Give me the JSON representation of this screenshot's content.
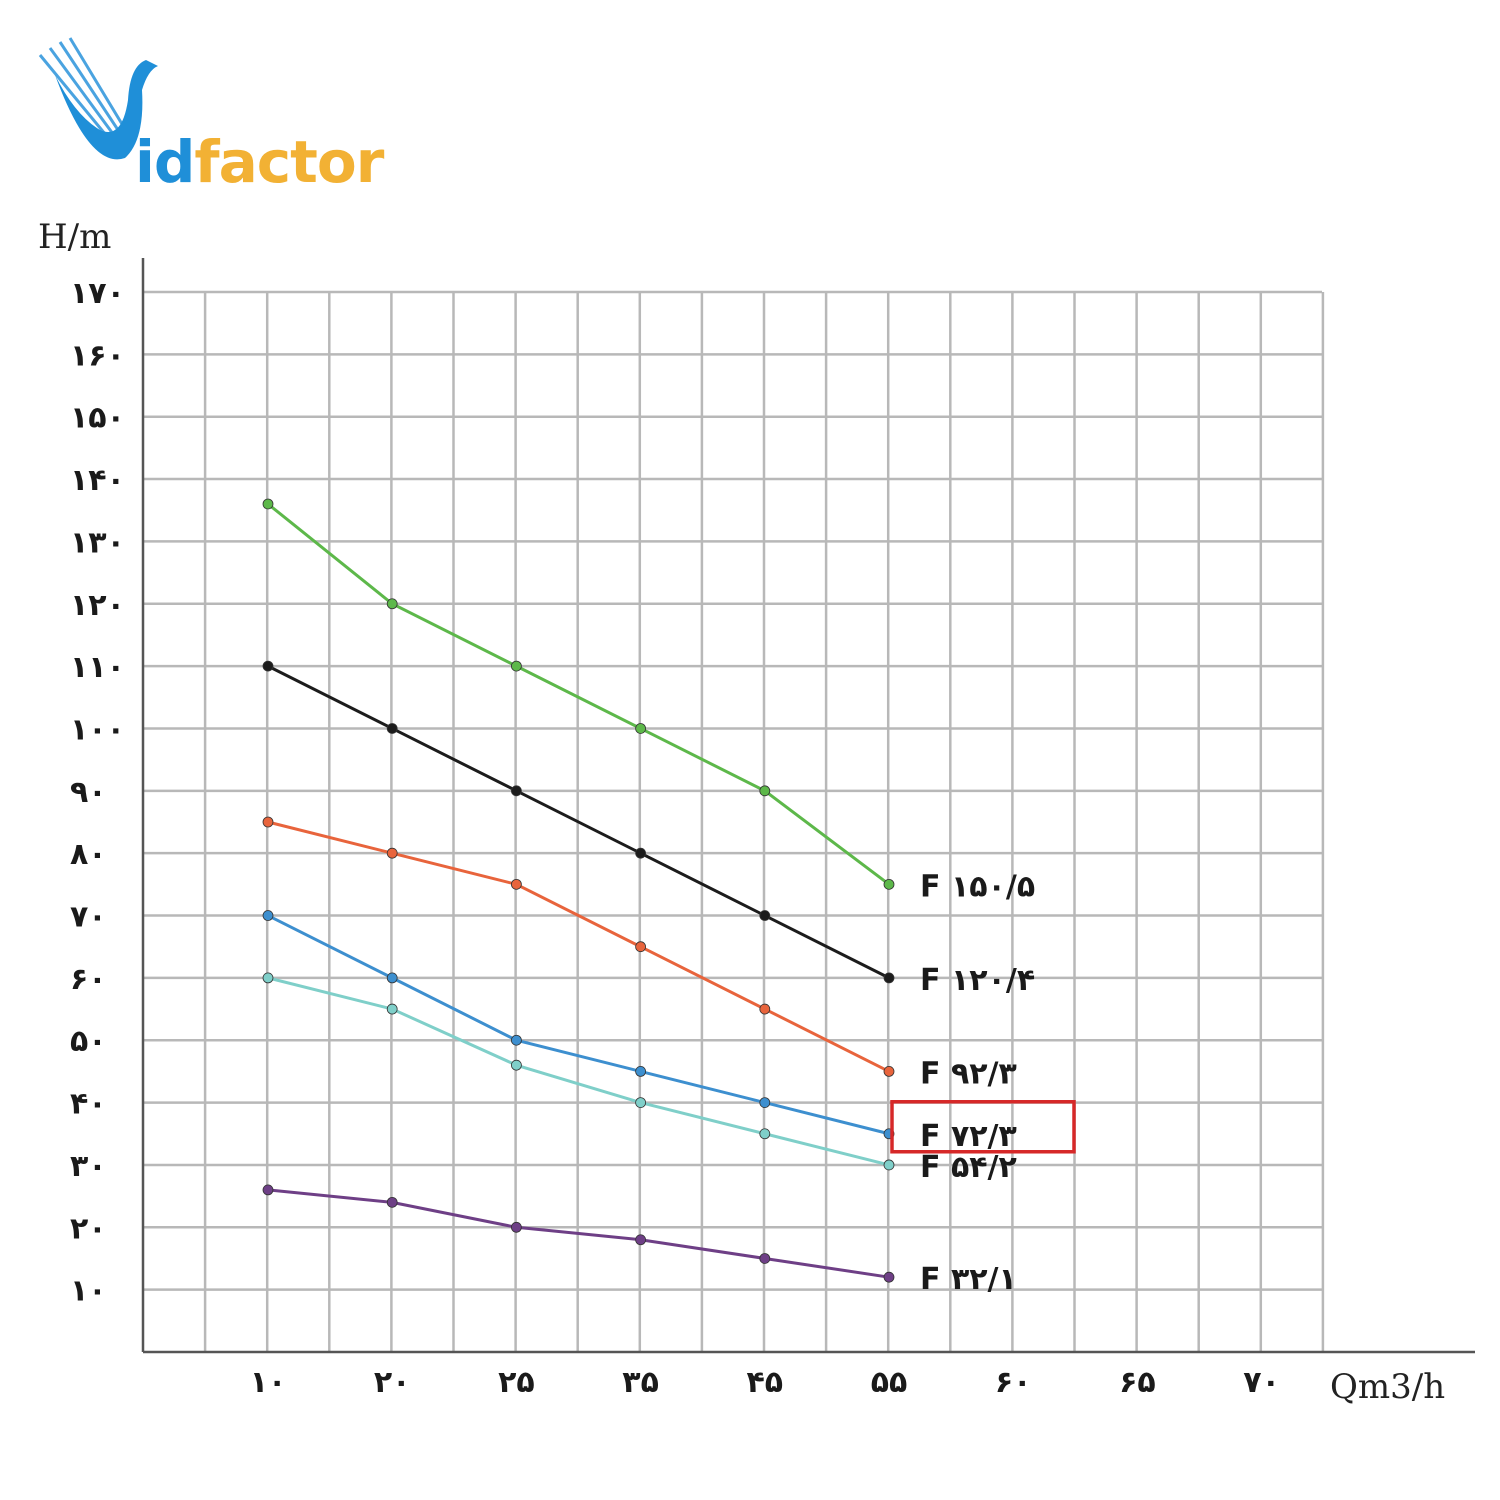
{
  "logo": {
    "text_i": "id",
    "text_rest": "factor"
  },
  "chart_data": {
    "type": "line",
    "ylabel": "H/m",
    "xlabel": "Qm3/h",
    "ylim": [
      0,
      170
    ],
    "grid": true,
    "x_tick_labels": [
      "۱۰",
      "۲۰",
      "۲۵",
      "۳۵",
      "۴۵",
      "۵۵",
      "۶۰",
      "۶۵",
      "۷۰"
    ],
    "y_ticks": [
      10,
      20,
      30,
      40,
      50,
      60,
      70,
      80,
      90,
      100,
      110,
      120,
      130,
      140,
      150,
      160,
      170
    ],
    "y_tick_labels": [
      "۱۰",
      "۲۰",
      "۳۰",
      "۴۰",
      "۵۰",
      "۶۰",
      "۷۰",
      "۸۰",
      "۹۰",
      "۱۰۰",
      "۱۱۰",
      "۱۲۰",
      "۱۳۰",
      "۱۴۰",
      "۱۵۰",
      "۱۶۰",
      "۱۷۰"
    ],
    "categories": [
      "۱۰",
      "۲۰",
      "۲۵",
      "۳۵",
      "۴۵",
      "۵۵"
    ],
    "series": [
      {
        "name": "F ۱۵۰/۵",
        "color": "#5db84a",
        "values": [
          136,
          120,
          110,
          100,
          90,
          75
        ]
      },
      {
        "name": "F ۱۲۰/۴",
        "color": "#1c1c1c",
        "values": [
          110,
          100,
          90,
          80,
          70,
          60
        ]
      },
      {
        "name": "F ۹۲/۳",
        "color": "#e8643c",
        "values": [
          85,
          80,
          75,
          65,
          55,
          45
        ]
      },
      {
        "name": "F ۷۲/۳",
        "color": "#3d8fcf",
        "values": [
          70,
          60,
          50,
          45,
          40,
          35
        ],
        "highlighted": true,
        "highlight_color": "#d62828"
      },
      {
        "name": "F ۵۴/۲",
        "color": "#7fcfc9",
        "values": [
          60,
          55,
          46,
          40,
          35,
          30
        ]
      },
      {
        "name": "F ۳۲/۱",
        "color": "#6e3f86",
        "values": [
          26,
          24,
          20,
          18,
          15,
          12
        ]
      }
    ]
  }
}
